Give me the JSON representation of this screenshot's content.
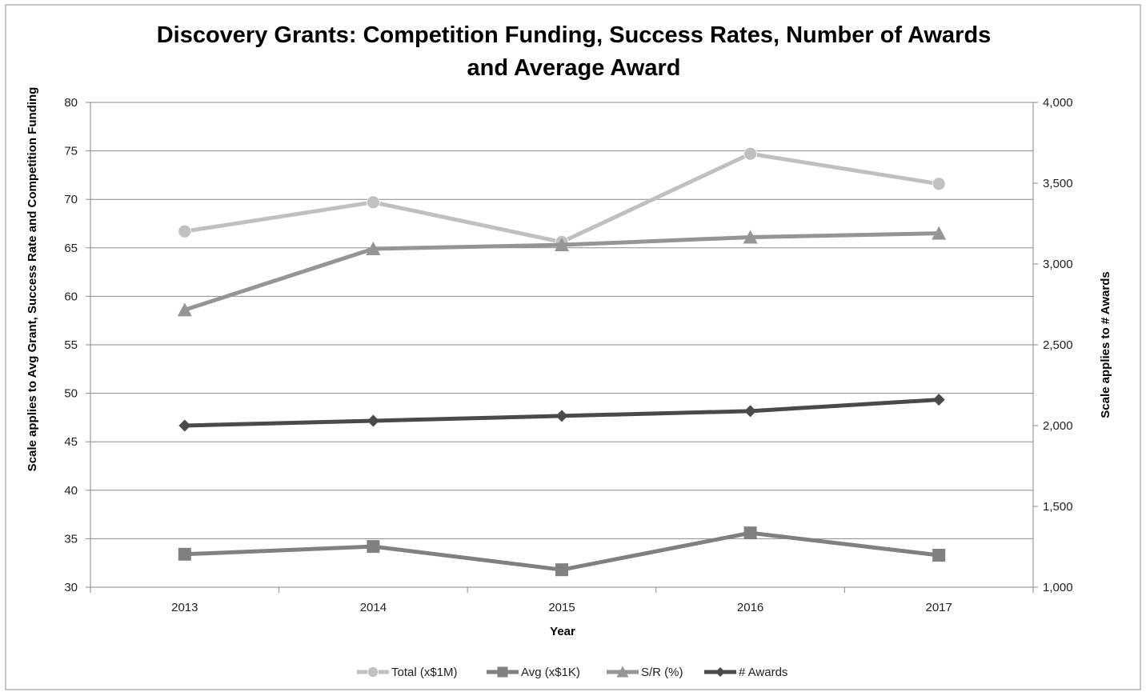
{
  "chart_data": {
    "type": "line",
    "title_lines": [
      "Discovery Grants:  Competition Funding, Success Rates, Number of Awards",
      "and Average Award"
    ],
    "xlabel": "Year",
    "ylabel_left": "Scale applies to Avg Grant, Success Rate and Competition Funding",
    "ylabel_right": "Scale applies to # Awards",
    "categories": [
      "2013",
      "2014",
      "2015",
      "2016",
      "2017"
    ],
    "ylim_left": [
      30,
      80
    ],
    "yticks_left": [
      30,
      35,
      40,
      45,
      50,
      55,
      60,
      65,
      70,
      75,
      80
    ],
    "ylim_right": [
      1000,
      4000
    ],
    "yticks_right": [
      1000,
      1500,
      2000,
      2500,
      3000,
      3500,
      4000
    ],
    "yticks_right_labels": [
      "1,000",
      "1,500",
      "2,000",
      "2,500",
      "3,000",
      "3,500",
      "4,000"
    ],
    "grid": true,
    "legend_position": "bottom",
    "series": [
      {
        "name": "Total (x$1M)",
        "axis": "left",
        "marker": "circle",
        "color": "#c0c0c0",
        "values": [
          66.7,
          69.7,
          65.6,
          74.7,
          71.6
        ]
      },
      {
        "name": "Avg (x$1K)",
        "axis": "left",
        "marker": "square",
        "color": "#808080",
        "values": [
          33.4,
          34.2,
          31.8,
          35.6,
          33.3
        ]
      },
      {
        "name": "S/R (%)",
        "axis": "left",
        "marker": "triangle",
        "color": "#959595",
        "values": [
          58.6,
          64.9,
          65.3,
          66.1,
          66.5
        ]
      },
      {
        "name": "# Awards",
        "axis": "right",
        "marker": "diamond",
        "color": "#4a4a4a",
        "values": [
          2000,
          2030,
          2060,
          2090,
          2160
        ]
      }
    ]
  }
}
